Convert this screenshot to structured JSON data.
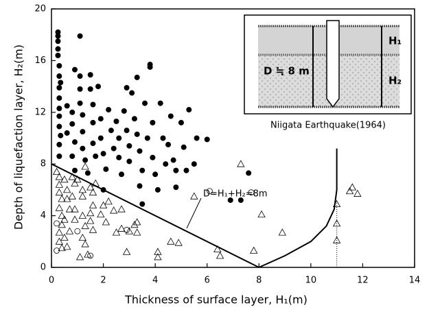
{
  "chart_data": {
    "type": "scatter",
    "xlabel": "Thickness of surface layer, H₁(m)",
    "ylabel": "Depth of liquefaction layer, H₂(m)",
    "annotation": "D=H₁+H₂=8m",
    "inset": {
      "h1": "H₁",
      "h2": "H₂",
      "depth": "D ≒ 8 m",
      "caption": "Niigata Earthquake(1964)"
    },
    "xlim": [
      0,
      14
    ],
    "xticks": [
      0,
      2,
      4,
      6,
      8,
      10,
      12,
      14
    ],
    "ylim": [
      0,
      20
    ],
    "yticks": [
      0,
      4,
      8,
      12,
      16,
      20
    ],
    "series": [
      {
        "marker": "circle-filled",
        "color": "#000000",
        "x": [
          0.25,
          0.25,
          0.25,
          0.25,
          0.25,
          0.3,
          0.3,
          0.35,
          0.3,
          0.3,
          0.3,
          0.3,
          0.3,
          0.35,
          0.3,
          0.3,
          0.6,
          0.6,
          0.8,
          0.8,
          0.9,
          0.8,
          0.9,
          1.1,
          0.9,
          1.1,
          1.1,
          1.1,
          1.2,
          1.2,
          1.2,
          1.3,
          1.4,
          1.5,
          1.5,
          1.6,
          1.6,
          1.6,
          1.7,
          1.8,
          1.9,
          1.9,
          2.0,
          2.1,
          2.0,
          2.2,
          2.3,
          2.4,
          2.5,
          2.6,
          2.6,
          2.7,
          2.8,
          2.9,
          2.9,
          3.0,
          3.1,
          3.0,
          3.2,
          3.3,
          3.3,
          3.4,
          3.5,
          3.4,
          3.5,
          3.6,
          3.7,
          3.8,
          3.8,
          3.9,
          3.9,
          4.0,
          4.1,
          4.2,
          4.3,
          4.4,
          4.5,
          4.6,
          4.7,
          4.8,
          4.8,
          5.0,
          5.1,
          5.2,
          5.3,
          5.5,
          5.6,
          6.0,
          6.9,
          7.3,
          7.6
        ],
        "values": [
          18.2,
          17.9,
          17.5,
          16.9,
          16.4,
          15.6,
          14.8,
          14.3,
          13.9,
          13.1,
          12.3,
          11.7,
          10.9,
          10.2,
          9.5,
          8.6,
          12.5,
          10.4,
          12.0,
          11.1,
          9.7,
          8.6,
          7.5,
          17.9,
          15.3,
          14.8,
          13.8,
          12.7,
          11.8,
          10.5,
          9.2,
          8.3,
          7.3,
          14.9,
          13.8,
          12.6,
          11.2,
          9.6,
          8.6,
          14.0,
          11.5,
          10.0,
          8.8,
          7.6,
          6.0,
          12.2,
          10.6,
          9.2,
          11.3,
          10.0,
          8.5,
          7.2,
          12.1,
          13.9,
          10.6,
          9.4,
          13.5,
          8.2,
          11.5,
          14.7,
          10.3,
          9.0,
          7.5,
          6.3,
          4.9,
          12.7,
          10.0,
          15.7,
          15.5,
          11.2,
          8.5,
          7.2,
          6.0,
          12.7,
          10.0,
          8.0,
          9.5,
          11.7,
          8.3,
          7.5,
          6.2,
          11.2,
          9.3,
          7.5,
          12.2,
          8.0,
          10.0,
          9.9,
          5.2,
          5.2,
          7.3
        ]
      },
      {
        "marker": "triangle-open",
        "color": "#000000",
        "x": [
          0.2,
          0.3,
          0.3,
          0.3,
          0.4,
          0.3,
          0.4,
          0.4,
          0.3,
          0.3,
          0.4,
          0.5,
          0.6,
          0.6,
          0.7,
          0.5,
          0.7,
          0.5,
          0.6,
          0.8,
          0.9,
          0.8,
          0.9,
          0.9,
          1.0,
          1.2,
          1.2,
          1.3,
          1.2,
          1.3,
          1.2,
          1.3,
          1.1,
          1.4,
          1.5,
          1.6,
          1.6,
          1.5,
          1.5,
          1.6,
          1.7,
          1.9,
          2.0,
          2.2,
          2.1,
          2.4,
          2.5,
          2.7,
          2.7,
          2.9,
          3.0,
          3.2,
          3.3,
          3.3,
          4.1,
          4.1,
          4.6,
          4.9,
          5.5,
          6.4,
          6.5,
          7.3,
          8.1,
          7.8,
          8.9,
          11.0,
          11.0,
          11.0,
          11.6,
          11.5,
          11.8
        ],
        "values": [
          7.4,
          7.0,
          6.4,
          5.8,
          5.3,
          4.6,
          4.0,
          3.3,
          2.7,
          2.0,
          1.5,
          6.8,
          6.0,
          5.3,
          4.5,
          3.7,
          2.8,
          2.3,
          1.6,
          7.0,
          6.5,
          5.5,
          4.5,
          3.7,
          6.8,
          6.0,
          5.5,
          7.8,
          4.0,
          3.2,
          2.3,
          1.8,
          0.8,
          1.0,
          6.2,
          5.8,
          4.8,
          4.2,
          3.6,
          2.9,
          6.5,
          4.1,
          4.8,
          5.1,
          3.5,
          4.4,
          2.7,
          4.5,
          3.0,
          1.2,
          2.8,
          3.3,
          3.5,
          2.7,
          1.2,
          0.8,
          2.0,
          1.9,
          5.5,
          1.4,
          0.9,
          8.0,
          4.1,
          1.3,
          2.7,
          4.9,
          3.4,
          2.1,
          6.2,
          5.9,
          5.7
        ]
      },
      {
        "marker": "circle-open",
        "color": "#000000",
        "x": [
          0.2,
          0.2,
          1.0,
          1.5,
          2.9,
          6.1,
          7.7
        ],
        "values": [
          3.4,
          1.3,
          2.8,
          0.9,
          2.9,
          5.9,
          5.8
        ]
      }
    ],
    "lines": [
      {
        "style": "solid",
        "x": [
          0,
          8
        ],
        "values": [
          8,
          0
        ]
      },
      {
        "style": "solid",
        "x": [
          8,
          9,
          10,
          10.6,
          10.9,
          11,
          11
        ],
        "values": [
          0,
          0.9,
          2.0,
          3.2,
          4.5,
          6.0,
          9.2
        ]
      },
      {
        "style": "dotted",
        "x": [
          11,
          11
        ],
        "values": [
          0,
          5
        ]
      }
    ]
  }
}
